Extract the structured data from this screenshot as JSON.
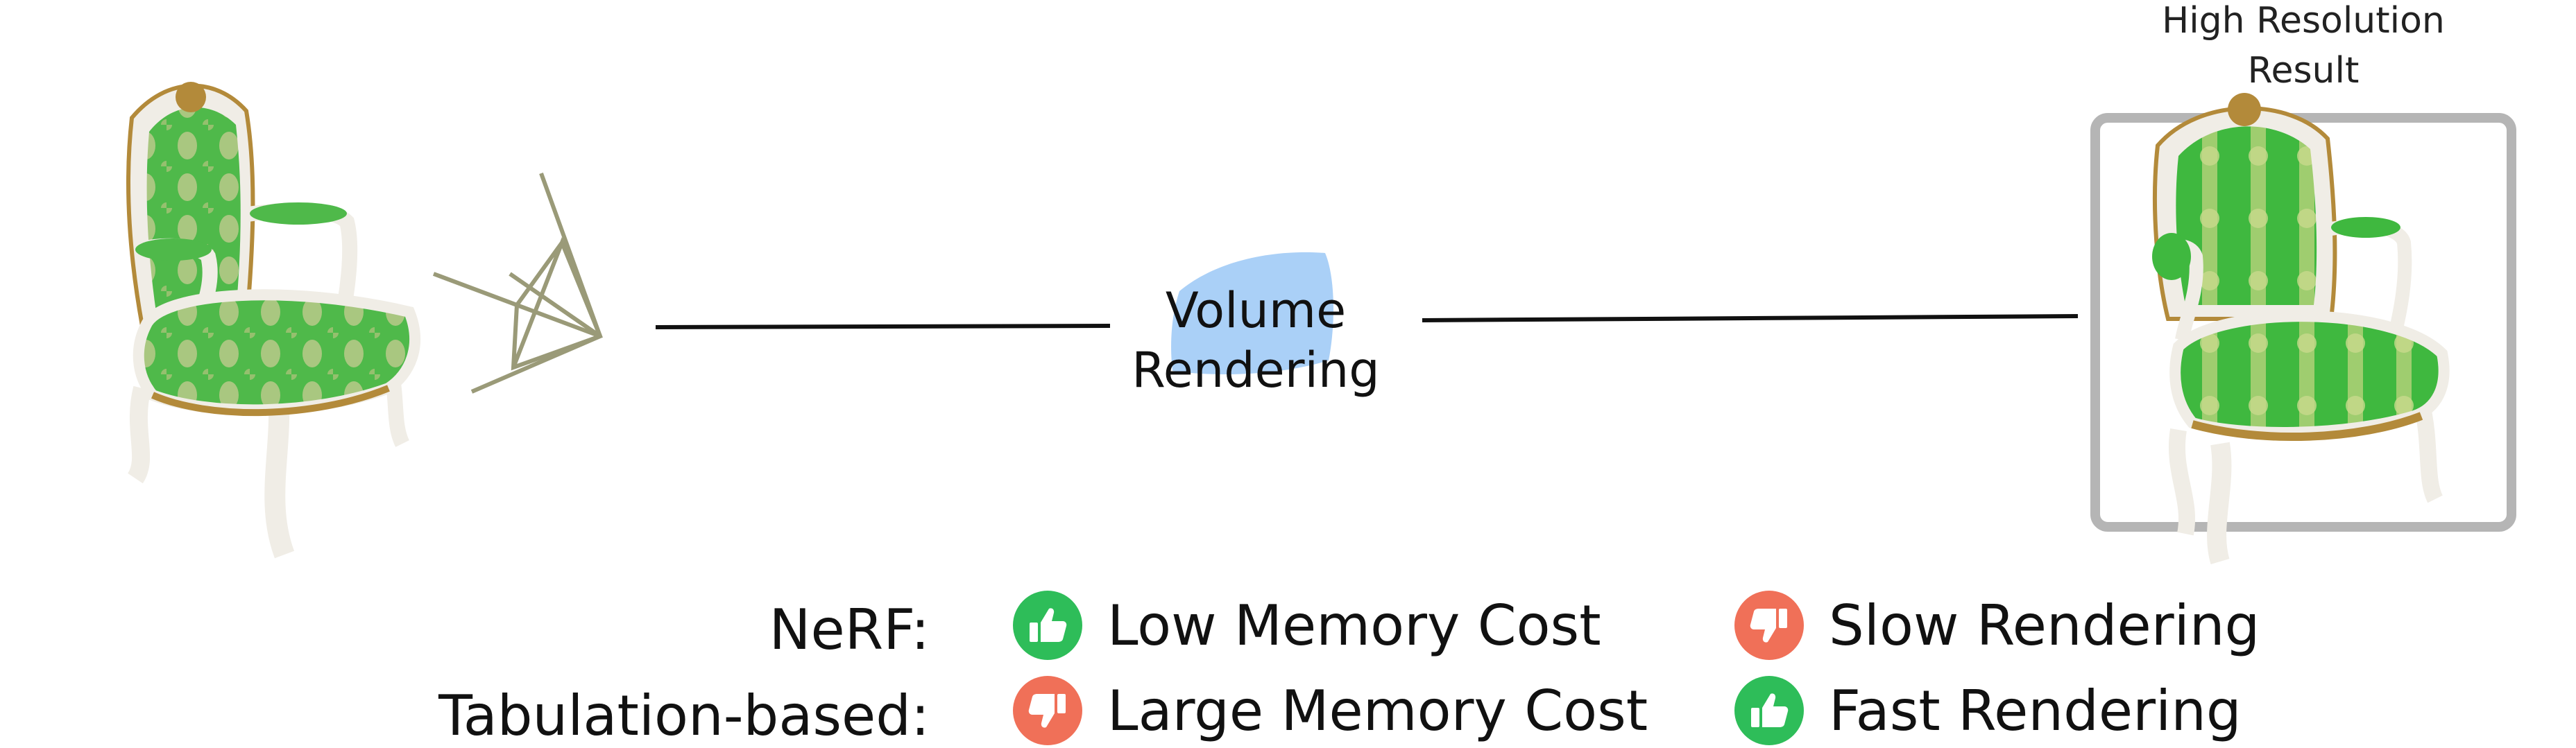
{
  "colors": {
    "positive": "#2ebd59",
    "negative": "#f07058",
    "volume_blob": "#aad0f7",
    "frame": "#b5b5b5",
    "ray": "#9a9a78",
    "chair_green": "#4fb94a",
    "chair_frame": "#f0ede6",
    "chair_gold": "#b38a3a"
  },
  "icons": {
    "positive": "thumbs-up-icon",
    "negative": "thumbs-down-icon"
  },
  "diagram": {
    "result_caption_line1": "High Resolution",
    "result_caption_line2": "Result",
    "volume_line1": "Volume",
    "volume_line2": "Rendering"
  },
  "comparison": {
    "rows": [
      {
        "label": "NeRF:",
        "pros": "Low Memory Cost",
        "pros_icon": "positive",
        "cons": "Slow Rendering",
        "cons_icon": "negative"
      },
      {
        "label": "Tabulation-based:",
        "pros": "Large Memory Cost",
        "pros_icon": "negative",
        "cons": "Fast Rendering",
        "cons_icon": "positive"
      }
    ]
  }
}
